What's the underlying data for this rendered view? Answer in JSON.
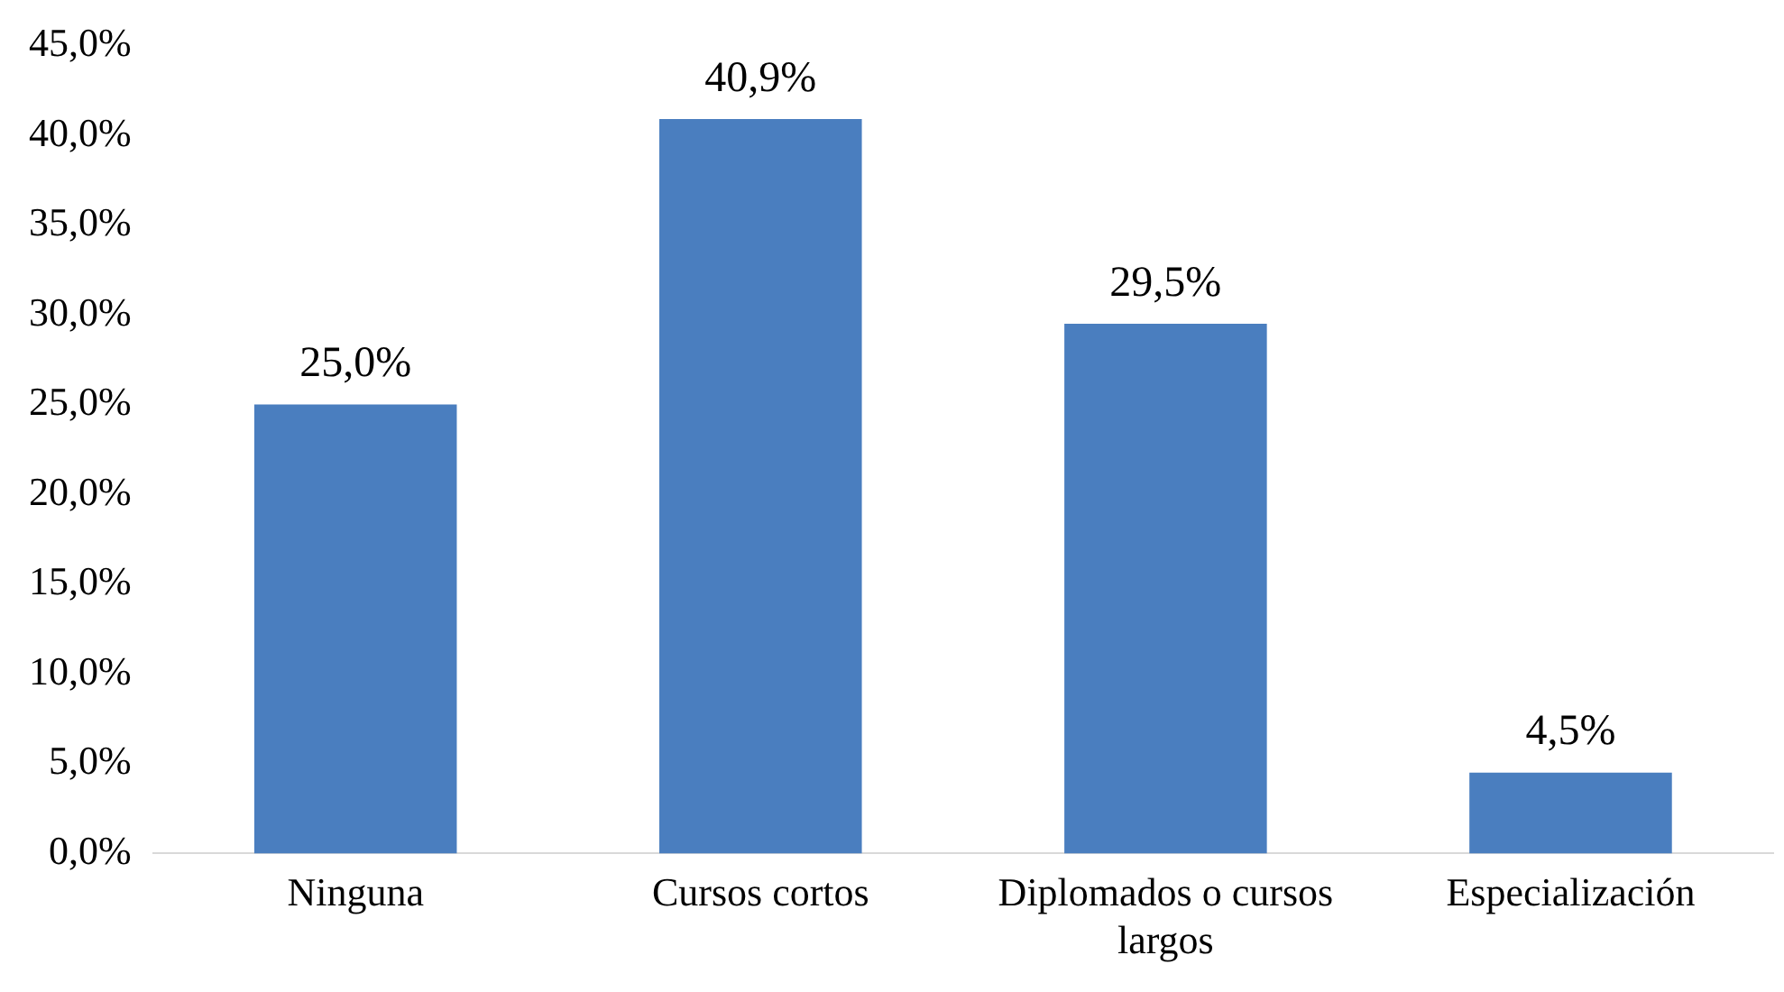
{
  "chart_data": {
    "type": "bar",
    "categories": [
      "Ninguna",
      "Cursos cortos",
      "Diplomados o cursos largos",
      "Especialización"
    ],
    "values": [
      25.0,
      40.9,
      29.5,
      4.5
    ],
    "value_labels": [
      "25,0%",
      "40,9%",
      "29,5%",
      "4,5%"
    ],
    "color": "#4a7ebf",
    "ylim": [
      0,
      45
    ],
    "yticks": [
      {
        "value": 0,
        "label": "0,0%"
      },
      {
        "value": 5,
        "label": "5,0%"
      },
      {
        "value": 10,
        "label": "10,0%"
      },
      {
        "value": 15,
        "label": "15,0%"
      },
      {
        "value": 20,
        "label": "20,0%"
      },
      {
        "value": 25,
        "label": "25,0%"
      },
      {
        "value": 30,
        "label": "30,0%"
      },
      {
        "value": 35,
        "label": "35,0%"
      },
      {
        "value": 40,
        "label": "40,0%"
      },
      {
        "value": 45,
        "label": "45,0%"
      }
    ],
    "grid": false,
    "legend": false
  }
}
